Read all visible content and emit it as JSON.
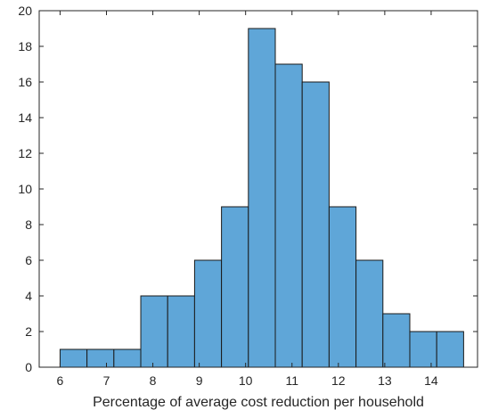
{
  "chart_data": {
    "type": "histogram",
    "bins": [
      {
        "x0": 6.0,
        "x1": 6.58,
        "count": 1
      },
      {
        "x0": 6.58,
        "x1": 7.16,
        "count": 1
      },
      {
        "x0": 7.16,
        "x1": 7.74,
        "count": 1
      },
      {
        "x0": 7.74,
        "x1": 8.32,
        "count": 4
      },
      {
        "x0": 8.32,
        "x1": 8.9,
        "count": 4
      },
      {
        "x0": 8.9,
        "x1": 9.48,
        "count": 6
      },
      {
        "x0": 9.48,
        "x1": 10.06,
        "count": 9
      },
      {
        "x0": 10.06,
        "x1": 10.64,
        "count": 19
      },
      {
        "x0": 10.64,
        "x1": 11.22,
        "count": 17
      },
      {
        "x0": 11.22,
        "x1": 11.8,
        "count": 16
      },
      {
        "x0": 11.8,
        "x1": 12.38,
        "count": 9
      },
      {
        "x0": 12.38,
        "x1": 12.96,
        "count": 6
      },
      {
        "x0": 12.96,
        "x1": 13.54,
        "count": 3
      },
      {
        "x0": 13.54,
        "x1": 14.12,
        "count": 2
      },
      {
        "x0": 14.12,
        "x1": 14.7,
        "count": 2
      }
    ],
    "title": "",
    "xlabel": "Percentage of average cost reduction per household",
    "ylabel": "",
    "xlim": [
      5.55,
      15.0
    ],
    "ylim": [
      0,
      20
    ],
    "xticks": [
      "6",
      "7",
      "8",
      "9",
      "10",
      "11",
      "12",
      "13",
      "14"
    ],
    "yticks": [
      "0",
      "2",
      "4",
      "6",
      "8",
      "10",
      "12",
      "14",
      "16",
      "18",
      "20"
    ],
    "grid": false,
    "box": true,
    "bar_color": "#5fa6d8",
    "edge_color": "#1a1a1a",
    "axis_color": "#262626"
  }
}
